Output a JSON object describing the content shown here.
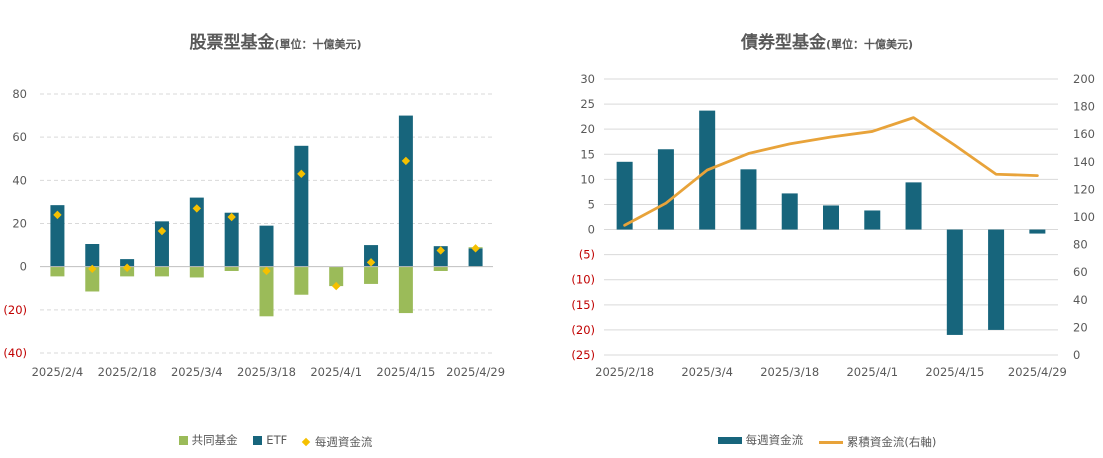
{
  "chart_data": [
    {
      "type": "bar",
      "stacked": true,
      "title": "股票型基金",
      "title_unit": "(單位：十億美元)",
      "x": [
        "2025/2/4",
        "2025/2/11",
        "2025/2/18",
        "2025/2/25",
        "2025/3/4",
        "2025/3/11",
        "2025/3/18",
        "2025/3/25",
        "2025/4/1",
        "2025/4/8",
        "2025/4/15",
        "2025/4/22",
        "2025/4/29"
      ],
      "x_tick_labels": [
        "2025/2/4",
        "2025/2/18",
        "2025/3/4",
        "2025/3/18",
        "2025/4/1",
        "2025/4/15",
        "2025/4/29"
      ],
      "y_tick_labels": [
        "80",
        "60",
        "40",
        "20",
        "0",
        "(20)",
        "(40)"
      ],
      "ylim": [
        -40,
        80
      ],
      "grid": true,
      "legend_position": "bottom",
      "series": [
        {
          "name": "共同基金",
          "kind": "bar",
          "color": "#9bbb59",
          "values": [
            -4.5,
            -11.5,
            -4.5,
            -4.5,
            -5,
            -2,
            -23,
            -13,
            -9,
            -8,
            -21.5,
            -2,
            0.5
          ]
        },
        {
          "name": "ETF",
          "kind": "bar",
          "color": "#17657c",
          "values": [
            28.5,
            10.5,
            3.5,
            21,
            32,
            25,
            19,
            56,
            0,
            10,
            70,
            9.5,
            8.5
          ]
        },
        {
          "name": "每週資金流",
          "kind": "marker",
          "color": "#f5c000",
          "values": [
            24,
            -1,
            -0.5,
            16.5,
            27,
            23,
            -2,
            43,
            -9,
            2,
            49,
            7.5,
            8.5
          ]
        }
      ]
    },
    {
      "type": "bar",
      "title": "債券型基金",
      "title_unit": "(單位：十億美元)",
      "x": [
        "2025/2/18",
        "2025/2/25",
        "2025/3/4",
        "2025/3/11",
        "2025/3/18",
        "2025/3/25",
        "2025/4/1",
        "2025/4/8",
        "2025/4/15",
        "2025/4/22",
        "2025/4/29"
      ],
      "x_tick_labels": [
        "2025/2/18",
        "2025/3/4",
        "2025/3/18",
        "2025/4/1",
        "2025/4/15",
        "2025/4/29"
      ],
      "y_tick_labels": [
        "30",
        "25",
        "20",
        "15",
        "10",
        "5",
        "0",
        "(5)",
        "(10)",
        "(15)",
        "(20)",
        "(25)"
      ],
      "y2_tick_labels": [
        "200",
        "180",
        "160",
        "140",
        "120",
        "100",
        "80",
        "60",
        "40",
        "20",
        "0"
      ],
      "ylim": [
        -25,
        30
      ],
      "y2lim": [
        0,
        200
      ],
      "grid": true,
      "legend_position": "bottom",
      "series": [
        {
          "name": "每週資金流",
          "kind": "bar",
          "axis": "left",
          "color": "#17657c",
          "values": [
            13.5,
            16,
            23.7,
            12,
            7.2,
            4.8,
            3.8,
            9.4,
            -21,
            -20,
            -0.8
          ]
        },
        {
          "name": "累積資金流(右軸)",
          "kind": "line",
          "axis": "right",
          "color": "#e8a33a",
          "values": [
            94,
            110,
            134,
            146,
            153,
            158,
            162,
            172,
            152,
            131,
            130
          ]
        }
      ]
    }
  ]
}
